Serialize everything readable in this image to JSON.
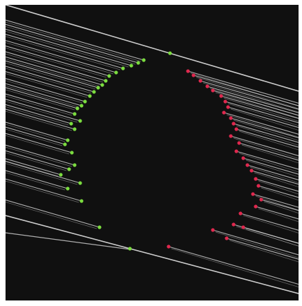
{
  "image": {
    "description_free": true
  },
  "colors": {
    "background": "#101010",
    "frame": "#ffffff",
    "track_line": "#d8d8d8",
    "left_marker": "#7bdc3f",
    "right_marker": "#e0284e"
  }
}
